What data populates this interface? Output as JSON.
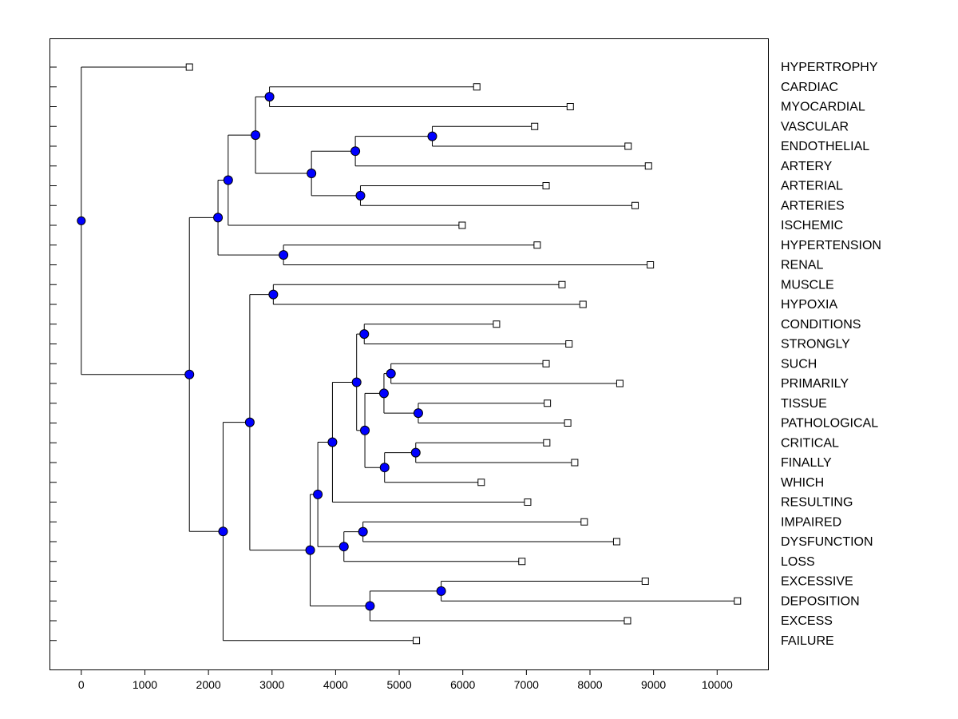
{
  "chart_data": {
    "type": "dendrogram",
    "orientation": "horizontal",
    "x_ticks": [
      0,
      1000,
      2000,
      3000,
      4000,
      5000,
      6000,
      7000,
      8000,
      9000,
      10000
    ],
    "xlim": [
      -500,
      10800
    ],
    "grid": false,
    "colors": {
      "node": "#0000ff",
      "leaf": "#ffffff",
      "line": "#000000"
    },
    "leaves": [
      {
        "label": "HYPERTROPHY",
        "value": 1700
      },
      {
        "label": "CARDIAC",
        "value": 6220
      },
      {
        "label": "MYOCARDIAL",
        "value": 7690
      },
      {
        "label": "VASCULAR",
        "value": 7130
      },
      {
        "label": "ENDOTHELIAL",
        "value": 8600
      },
      {
        "label": "ARTERY",
        "value": 8920
      },
      {
        "label": "ARTERIAL",
        "value": 7310
      },
      {
        "label": "ARTERIES",
        "value": 8710
      },
      {
        "label": "ISCHEMIC",
        "value": 5990
      },
      {
        "label": "HYPERTENSION",
        "value": 7170
      },
      {
        "label": "RENAL",
        "value": 8950
      },
      {
        "label": "MUSCLE",
        "value": 7560
      },
      {
        "label": "HYPOXIA",
        "value": 7890
      },
      {
        "label": "CONDITIONS",
        "value": 6530
      },
      {
        "label": "STRONGLY",
        "value": 7670
      },
      {
        "label": "SUCH",
        "value": 7310
      },
      {
        "label": "PRIMARILY",
        "value": 8470
      },
      {
        "label": "TISSUE",
        "value": 7330
      },
      {
        "label": "PATHOLOGICAL",
        "value": 7650
      },
      {
        "label": "CRITICAL",
        "value": 7320
      },
      {
        "label": "FINALLY",
        "value": 7760
      },
      {
        "label": "WHICH",
        "value": 6290
      },
      {
        "label": "RESULTING",
        "value": 7020
      },
      {
        "label": "IMPAIRED",
        "value": 7910
      },
      {
        "label": "DYSFUNCTION",
        "value": 8420
      },
      {
        "label": "LOSS",
        "value": 6930
      },
      {
        "label": "EXCESSIVE",
        "value": 8870
      },
      {
        "label": "DEPOSITION",
        "value": 10320
      },
      {
        "label": "EXCESS",
        "value": 8590
      },
      {
        "label": "FAILURE",
        "value": 5270
      }
    ],
    "tree": {
      "h": 0,
      "c": [
        0,
        {
          "h": 1700,
          "c": [
            {
              "h": 2150,
              "c": [
                {
                  "h": 2310,
                  "c": [
                    {
                      "h": 2740,
                      "c": [
                        {
                          "h": 2960,
                          "c": [
                            1,
                            2
                          ]
                        },
                        {
                          "h": 3620,
                          "c": [
                            {
                              "h": 4310,
                              "c": [
                                {
                                  "h": 5520,
                                  "c": [
                                    3,
                                    4
                                  ]
                                },
                                5
                              ]
                            },
                            {
                              "h": 4390,
                              "c": [
                                6,
                                7
                              ]
                            }
                          ]
                        }
                      ]
                    },
                    8
                  ]
                },
                {
                  "h": 3180,
                  "c": [
                    9,
                    10
                  ]
                }
              ]
            },
            {
              "h": 2230,
              "c": [
                {
                  "h": 2650,
                  "c": [
                    {
                      "h": 3020,
                      "c": [
                        11,
                        12
                      ]
                    },
                    {
                      "h": 3600,
                      "c": [
                        {
                          "h": 3720,
                          "c": [
                            {
                              "h": 3950,
                              "c": [
                                {
                                  "h": 4330,
                                  "c": [
                                    {
                                      "h": 4450,
                                      "c": [
                                        13,
                                        14
                                      ]
                                    },
                                    {
                                      "h": 4460,
                                      "c": [
                                        {
                                          "h": 4760,
                                          "c": [
                                            {
                                              "h": 4870,
                                              "c": [
                                                15,
                                                16
                                              ]
                                            },
                                            {
                                              "h": 5300,
                                              "c": [
                                                17,
                                                18
                                              ]
                                            }
                                          ]
                                        },
                                        {
                                          "h": 4770,
                                          "c": [
                                            {
                                              "h": 5260,
                                              "c": [
                                                19,
                                                20
                                              ]
                                            },
                                            21
                                          ]
                                        }
                                      ]
                                    }
                                  ]
                                },
                                22
                              ]
                            },
                            {
                              "h": 4130,
                              "c": [
                                {
                                  "h": 4430,
                                  "c": [
                                    23,
                                    24
                                  ]
                                },
                                25
                              ]
                            }
                          ]
                        },
                        {
                          "h": 4540,
                          "c": [
                            {
                              "h": 5660,
                              "c": [
                                26,
                                27
                              ]
                            },
                            28
                          ]
                        }
                      ]
                    }
                  ]
                },
                29
              ]
            }
          ]
        }
      ]
    }
  }
}
